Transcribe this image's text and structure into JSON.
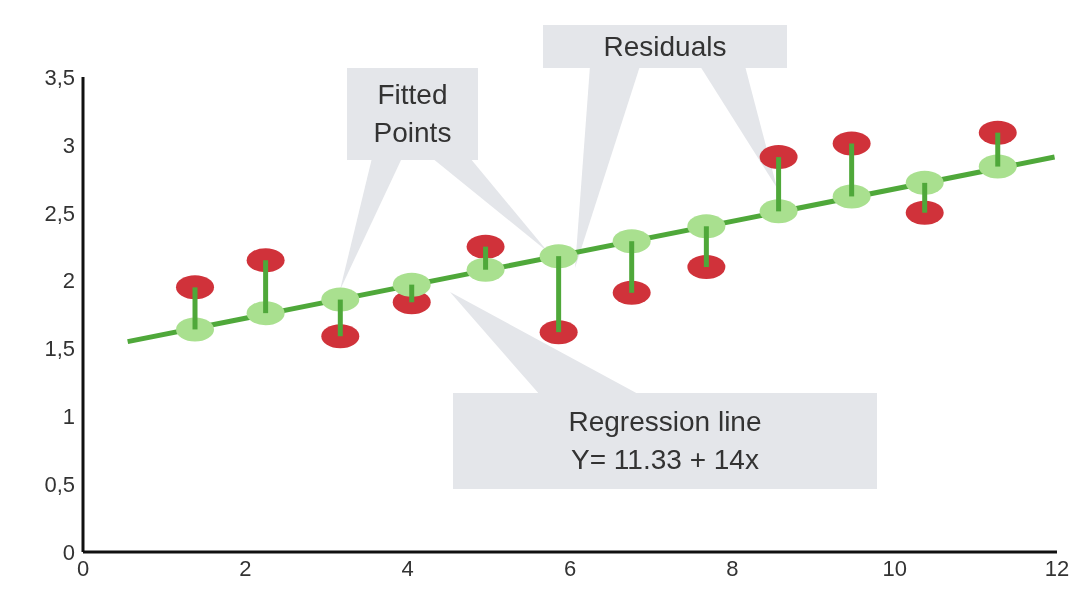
{
  "chart_data": {
    "type": "scatter",
    "xlim": [
      0,
      12
    ],
    "xticks": [
      0,
      2,
      4,
      6,
      8,
      10,
      12
    ],
    "ylim": [
      0,
      3.5
    ],
    "yticks": [
      {
        "value": 0,
        "label": "0"
      },
      {
        "value": 0.5,
        "label": "0,5"
      },
      {
        "value": 1,
        "label": "1"
      },
      {
        "value": 1.5,
        "label": "1,5"
      },
      {
        "value": 2,
        "label": "2"
      },
      {
        "value": 2.5,
        "label": "2,5"
      },
      {
        "value": 3,
        "label": "3"
      },
      {
        "value": 3.5,
        "label": "3,5"
      }
    ],
    "marker": "circle",
    "series": [
      {
        "type": "line",
        "marker": "none",
        "color": "#4fa83a",
        "x": [
          0.55,
          11.97
        ],
        "values": [
          1.55,
          2.91
        ]
      },
      {
        "color": "#d0323a",
        "x": [
          1.38,
          2.25,
          3.17,
          4.05,
          4.96,
          5.86,
          6.76,
          7.68,
          8.57,
          9.47,
          10.37,
          11.27
        ],
        "values": [
          1.95,
          2.15,
          1.59,
          1.84,
          2.25,
          1.62,
          1.91,
          2.1,
          2.91,
          3.01,
          2.5,
          3.09
        ]
      },
      {
        "color": "#a9e08f",
        "x": [
          1.38,
          2.25,
          3.17,
          4.05,
          4.96,
          5.86,
          6.76,
          7.68,
          8.57,
          9.47,
          10.37,
          11.27
        ],
        "values": [
          1.64,
          1.76,
          1.86,
          1.97,
          2.08,
          2.18,
          2.29,
          2.4,
          2.51,
          2.62,
          2.72,
          2.84
        ],
        "errors": [
          [
            1.64,
            1.95
          ],
          [
            1.76,
            2.15
          ],
          [
            1.59,
            1.86
          ],
          [
            1.84,
            1.97
          ],
          [
            2.08,
            2.25
          ],
          [
            1.62,
            2.18
          ],
          [
            1.91,
            2.29
          ],
          [
            2.1,
            2.4
          ],
          [
            2.51,
            2.91
          ],
          [
            2.62,
            3.01
          ],
          [
            2.5,
            2.72
          ],
          [
            2.84,
            3.09
          ]
        ]
      }
    ],
    "annotations": [
      "Fitted\nPoints",
      "Residuals",
      "Regression line\nY= 11.33 + 14x"
    ]
  }
}
